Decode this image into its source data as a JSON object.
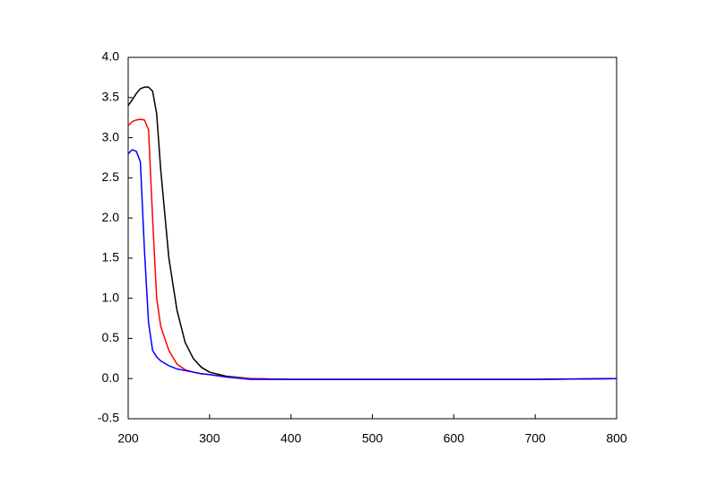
{
  "chart_data": {
    "type": "line",
    "x": [
      200,
      205,
      210,
      215,
      220,
      225,
      230,
      235,
      240,
      250,
      260,
      270,
      280,
      290,
      300,
      320,
      350,
      400,
      500,
      600,
      700,
      800
    ],
    "series": [
      {
        "color": "#000000",
        "values": [
          3.4,
          3.47,
          3.55,
          3.61,
          3.63,
          3.63,
          3.58,
          3.3,
          2.6,
          1.5,
          0.85,
          0.45,
          0.25,
          0.14,
          0.08,
          0.03,
          0,
          -0.01,
          -0.01,
          -0.01,
          -0.01,
          0
        ]
      },
      {
        "color": "#ff0000",
        "values": [
          3.15,
          3.2,
          3.22,
          3.23,
          3.22,
          3.1,
          2.0,
          1.0,
          0.65,
          0.35,
          0.18,
          0.11,
          0.08,
          0.06,
          0.05,
          0.02,
          0,
          -0.01,
          -0.01,
          -0.01,
          -0.01,
          0
        ]
      },
      {
        "color": "#0000ff",
        "values": [
          2.8,
          2.85,
          2.83,
          2.7,
          1.6,
          0.7,
          0.35,
          0.27,
          0.22,
          0.16,
          0.12,
          0.1,
          0.08,
          0.06,
          0.05,
          0.02,
          -0.01,
          -0.01,
          -0.01,
          -0.01,
          -0.01,
          0
        ]
      }
    ],
    "xlim": [
      200,
      800
    ],
    "xticks": [
      200,
      300,
      400,
      500,
      600,
      700,
      800
    ],
    "ylim": [
      -0.5,
      4
    ],
    "yticks": [
      -0.5,
      {
        "value": 0,
        "label": "0.0"
      },
      0.5,
      {
        "value": 1,
        "label": "1.0"
      },
      1.5,
      {
        "value": 2,
        "label": "2.0"
      },
      2.5,
      {
        "value": 3,
        "label": "3.0"
      },
      3.5,
      {
        "value": 4,
        "label": "4.0"
      }
    ],
    "grid": false
  }
}
